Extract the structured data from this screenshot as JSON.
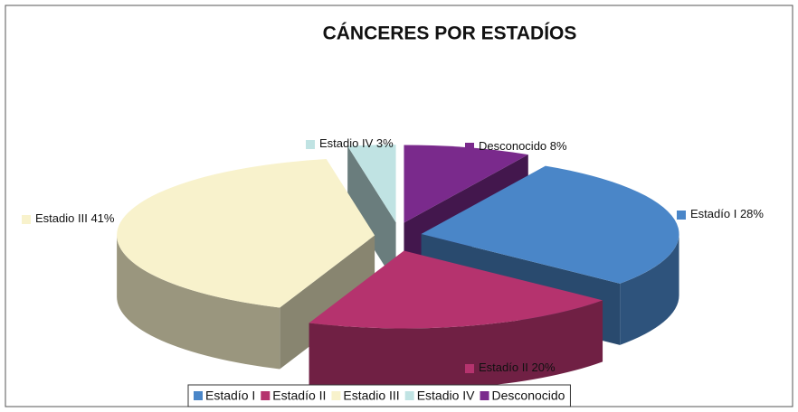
{
  "chart_data": {
    "type": "pie",
    "title": "CÁNCERES POR ESTADÍOS",
    "categories": [
      "Estadío I",
      "Estadío II",
      "Estadio III",
      "Estadio IV",
      "Desconocido"
    ],
    "values": [
      28,
      20,
      41,
      3,
      8
    ],
    "value_labels": [
      "28%",
      "20%",
      "41%",
      "3%",
      "8%"
    ],
    "colors": [
      "#4a86c8",
      "#b5336e",
      "#f8f2cc",
      "#c0e3e3",
      "#7a2a8c"
    ],
    "legend": "bottom"
  }
}
